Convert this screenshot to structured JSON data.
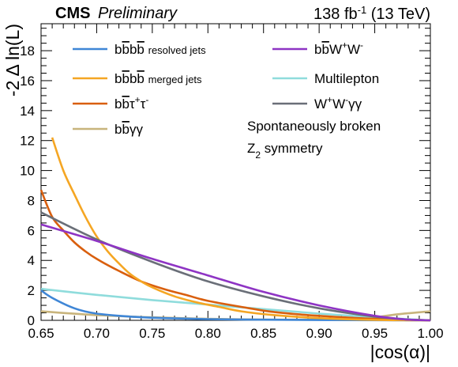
{
  "header": {
    "experiment": "CMS",
    "status": "Preliminary",
    "lumi_html": "138 fb<tspan baseline-shift=\"super\" font-size=\"13\">-1</tspan> (13 TeV)"
  },
  "annotation": {
    "line1": "Spontaneously broken",
    "line2": "Z",
    "line2_sub": "2",
    "line2_rest": " symmetry"
  },
  "chart_data": {
    "type": "line",
    "title": "",
    "xlabel": "|cos(α)|",
    "ylabel": "-2 Δ ln(L)",
    "xlim": [
      0.65,
      1.0
    ],
    "ylim": [
      0,
      19.8
    ],
    "xticks": [
      "0.65",
      "0.70",
      "0.75",
      "0.80",
      "0.85",
      "0.90",
      "0.95",
      "1.00"
    ],
    "yticks": [
      "0",
      "2",
      "4",
      "6",
      "8",
      "10",
      "12",
      "14",
      "16",
      "18"
    ],
    "legend_placement": "top, two columns",
    "series": [
      {
        "name": "bb̄bb̄ resolved jets",
        "color": "#3f86d6",
        "x": [
          0.65,
          0.66,
          0.68,
          0.7,
          0.73,
          0.76,
          0.8,
          0.85,
          0.9,
          0.95,
          1.0
        ],
        "y": [
          2.0,
          1.5,
          0.8,
          0.45,
          0.25,
          0.15,
          0.08,
          0.04,
          0.02,
          0.01,
          0.0
        ]
      },
      {
        "name": "bb̄bb̄ merged jets",
        "color": "#f5a623",
        "x": [
          0.66,
          0.67,
          0.68,
          0.69,
          0.7,
          0.71,
          0.72,
          0.73,
          0.74,
          0.75,
          0.77,
          0.79,
          0.81,
          0.83,
          0.86,
          0.9,
          0.95,
          1.0
        ],
        "y": [
          12.2,
          10.0,
          8.4,
          6.9,
          5.6,
          4.6,
          3.8,
          3.1,
          2.6,
          2.2,
          1.6,
          1.2,
          0.9,
          0.6,
          0.35,
          0.15,
          0.03,
          0.0
        ]
      },
      {
        "name": "bb̄τ⁺τ⁻",
        "color": "#d95f0e",
        "x": [
          0.65,
          0.66,
          0.67,
          0.68,
          0.69,
          0.7,
          0.72,
          0.74,
          0.76,
          0.78,
          0.8,
          0.83,
          0.86,
          0.9,
          0.95,
          1.0
        ],
        "y": [
          8.7,
          6.9,
          6.0,
          5.2,
          4.6,
          4.1,
          3.3,
          2.6,
          2.1,
          1.7,
          1.3,
          0.9,
          0.55,
          0.3,
          0.1,
          0.0
        ]
      },
      {
        "name": "bb̄γγ",
        "color": "#c8b47c",
        "x": [
          0.65,
          0.7,
          0.75,
          0.8,
          0.85,
          0.9,
          0.93,
          0.95,
          0.97,
          1.0
        ],
        "y": [
          0.6,
          0.35,
          0.2,
          0.1,
          0.05,
          0.05,
          0.1,
          0.2,
          0.4,
          0.6
        ]
      },
      {
        "name": "bb̄W⁺W⁻",
        "color": "#8e34c4",
        "x": [
          0.65,
          0.7,
          0.75,
          0.8,
          0.85,
          0.9,
          0.95,
          0.98,
          1.0
        ],
        "y": [
          6.4,
          5.3,
          4.1,
          3.0,
          1.9,
          1.0,
          0.3,
          0.05,
          0.0
        ]
      },
      {
        "name": "Multilepton",
        "color": "#8fdcdc",
        "x": [
          0.65,
          0.7,
          0.75,
          0.8,
          0.85,
          0.9,
          0.95,
          1.0
        ],
        "y": [
          2.1,
          1.7,
          1.35,
          1.05,
          0.75,
          0.45,
          0.2,
          0.0
        ]
      },
      {
        "name": "W⁺W⁻γγ",
        "color": "#6a6f78",
        "x": [
          0.65,
          0.7,
          0.75,
          0.8,
          0.85,
          0.9,
          0.95,
          0.98,
          1.0
        ],
        "y": [
          7.2,
          5.4,
          3.9,
          2.6,
          1.6,
          0.8,
          0.25,
          0.05,
          0.0
        ]
      }
    ]
  },
  "legend": [
    {
      "html": "b<tspan text-decoration=\"overline\">b</tspan>b<tspan text-decoration=\"overline\">b</tspan> <tspan font-size=\"13\">resolved jets</tspan>"
    },
    {
      "html": "b<tspan text-decoration=\"overline\">b</tspan>b<tspan text-decoration=\"overline\">b</tspan> <tspan font-size=\"13\">merged jets</tspan>"
    },
    {
      "html": "b<tspan text-decoration=\"overline\">b</tspan>τ<tspan baseline-shift=\"super\" font-size=\"12\">+</tspan>τ<tspan baseline-shift=\"super\" font-size=\"12\">-</tspan>"
    },
    {
      "html": "b<tspan text-decoration=\"overline\">b</tspan>γγ"
    },
    {
      "html": "b<tspan text-decoration=\"overline\">b</tspan>W<tspan baseline-shift=\"super\" font-size=\"12\">+</tspan>W<tspan baseline-shift=\"super\" font-size=\"12\">-</tspan>"
    },
    {
      "html": "Multilepton"
    },
    {
      "html": "W<tspan baseline-shift=\"super\" font-size=\"12\">+</tspan>W<tspan baseline-shift=\"super\" font-size=\"12\">-</tspan>γγ"
    }
  ]
}
